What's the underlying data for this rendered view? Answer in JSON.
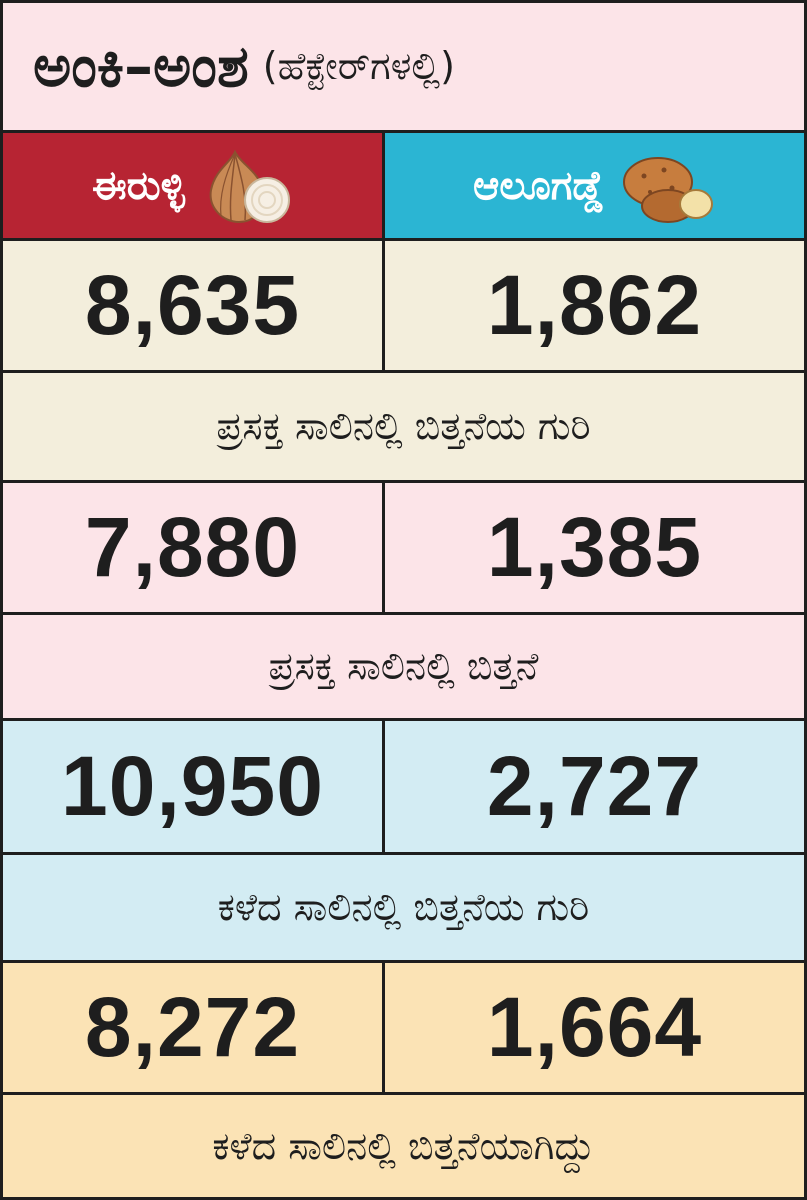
{
  "title": {
    "main": "ಅಂಕಿ–ಅಂಶ",
    "unit": "(ಹೆಕ್ಟೇರ್‌ಗಳಲ್ಲಿ)"
  },
  "columns": [
    {
      "label": "ಈರುಳ್ಳಿ",
      "icon": "onion-icon",
      "color": "#b72433"
    },
    {
      "label": "ಆಲೂಗಡ್ಡೆ",
      "icon": "potato-icon",
      "color": "#2bb5d3"
    }
  ],
  "rows": [
    {
      "values": [
        "8,635",
        "1,862"
      ],
      "caption": "ಪ್ರಸಕ್ತ ಸಾಲಿನಲ್ಲಿ ಬಿತ್ತನೆಯ ಗುರಿ",
      "bg": "#f3eedc"
    },
    {
      "values": [
        "7,880",
        "1,385"
      ],
      "caption": "ಪ್ರಸಕ್ತ ಸಾಲಿನಲ್ಲಿ ಬಿತ್ತನೆ",
      "bg": "#fce4e8"
    },
    {
      "values": [
        "10,950",
        "2,727"
      ],
      "caption": "ಕಳೆದ ಸಾಲಿನಲ್ಲಿ ಬಿತ್ತನೆಯ ಗುರಿ",
      "bg": "#d3ecf3"
    },
    {
      "values": [
        "8,272",
        "1,664"
      ],
      "caption": "ಕಳೆದ ಸಾಲಿನಲ್ಲಿ ಬಿತ್ತನೆಯಾಗಿದ್ದು",
      "bg": "#fbe3b5"
    }
  ]
}
